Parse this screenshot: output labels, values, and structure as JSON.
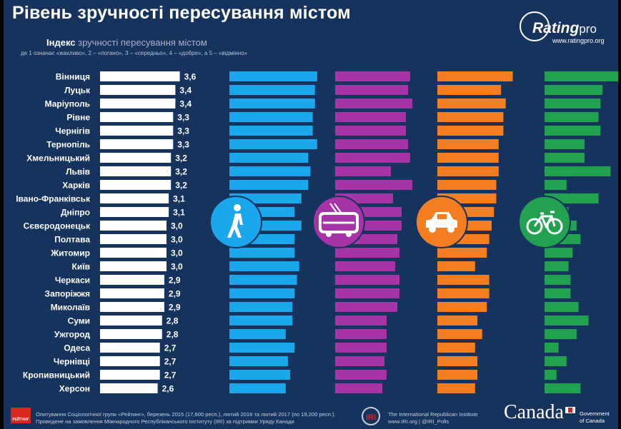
{
  "header": {
    "title": "Рівень зручності пересування містом",
    "subtitle_bold": "Індекс",
    "subtitle_rest": "зручності пересування містом",
    "scale_note": "де 1 означає «жахливо», 2 – «погано», 3 – «середньо», 4 – «добре», а 5 – «відмінно»"
  },
  "brand": {
    "logo_word": "Rating",
    "logo_suffix": "pro",
    "url": "www.ratingpro.org"
  },
  "chart_data": {
    "type": "bar",
    "orientation": "horizontal",
    "xlim": [
      0,
      5
    ],
    "categories": [
      "Вінниця",
      "Луцьк",
      "Маріуполь",
      "Рівне",
      "Чернігів",
      "Тернопіль",
      "Хмельницький",
      "Львів",
      "Харків",
      "Івано-Франківськ",
      "Дніпро",
      "Сєвєродонецьк",
      "Полтава",
      "Житомир",
      "Київ",
      "Черкаси",
      "Запоріжжя",
      "Миколаїв",
      "Суми",
      "Ужгород",
      "Одеса",
      "Чернівці",
      "Кропивницький",
      "Херсон"
    ],
    "series": [
      {
        "values": [
          3.6,
          3.4,
          3.4,
          3.3,
          3.3,
          3.3,
          3.2,
          3.2,
          3.2,
          3.1,
          3.1,
          3.0,
          3.0,
          3.0,
          3.0,
          2.9,
          2.9,
          2.9,
          2.8,
          2.8,
          2.7,
          2.7,
          2.7,
          2.6
        ],
        "labels": [
          "3,6",
          "3,4",
          "3,4",
          "3,3",
          "3,3",
          "3,3",
          "3,2",
          "3,2",
          "3,2",
          "3,1",
          "3,1",
          "3,0",
          "3,0",
          "3,0",
          "3,0",
          "2,9",
          "2,9",
          "2,9",
          "2,8",
          "2,8",
          "2,7",
          "2,7",
          "2,7",
          "2,6"
        ],
        "color": "#ffffff"
      },
      {
        "icon": "pedestrian-icon",
        "color": "#1aa7ec",
        "values": [
          3.9,
          3.8,
          3.8,
          3.7,
          3.7,
          3.9,
          3.5,
          3.6,
          3.5,
          3.2,
          2.9,
          3.2,
          2.9,
          2.9,
          3.1,
          3.0,
          2.9,
          2.8,
          2.8,
          2.5,
          2.9,
          2.6,
          2.7,
          2.5
        ]
      },
      {
        "icon": "trolleybus-icon",
        "color": "#a634a6",
        "values": [
          3.5,
          3.4,
          3.6,
          3.3,
          3.3,
          3.4,
          3.5,
          2.6,
          3.6,
          2.7,
          3.1,
          3.1,
          2.9,
          3.0,
          2.8,
          3.0,
          3.0,
          2.9,
          2.4,
          2.4,
          2.4,
          2.3,
          2.4,
          2.2
        ]
      },
      {
        "icon": "car-icon",
        "color": "#f57f20",
        "values": [
          3.2,
          2.7,
          2.9,
          2.8,
          2.8,
          2.6,
          2.6,
          2.6,
          2.5,
          2.5,
          2.4,
          2.3,
          2.2,
          2.1,
          1.6,
          2.2,
          2.2,
          2.1,
          1.7,
          1.9,
          1.6,
          1.7,
          1.7,
          1.6
        ]
      },
      {
        "icon": "bicycle-icon",
        "color": "#22a150",
        "values": [
          3.9,
          2.9,
          2.8,
          2.7,
          2.8,
          2.0,
          2.0,
          3.3,
          1.1,
          2.7,
          1.2,
          1.6,
          1.8,
          1.4,
          1.2,
          1.3,
          1.3,
          1.7,
          2.2,
          1.6,
          0.7,
          1.1,
          0.6,
          1.8
        ]
      }
    ]
  },
  "footer": {
    "badge": "РЕЙТИНГ",
    "survey_line1": "Опитування Соціологічної групи «Рейтинг», березень 2015 (17,600 респ.), лютий 2016 та лютий 2017 (по 19,200 респ.).",
    "survey_line2": "Проведене на замовлення Міжнародного Республіканського Інституту (IRI) за підтримки Уряду Канади",
    "iri_mark": "IRI",
    "iri_line1": "The International Republican Institute",
    "iri_line2": "www.IRI.org | @IRI_Polls",
    "canada_word": "Canada",
    "gov_line1": "Government",
    "gov_line2": "of Canada"
  }
}
